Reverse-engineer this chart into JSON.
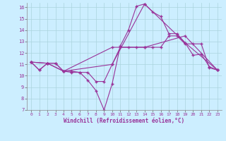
{
  "xlabel": "Windchill (Refroidissement éolien,°C)",
  "bg_color": "#cceeff",
  "line_color": "#993399",
  "xlim": [
    -0.5,
    23.5
  ],
  "ylim": [
    7,
    16.4
  ],
  "xticks": [
    0,
    1,
    2,
    3,
    4,
    5,
    6,
    7,
    8,
    9,
    10,
    11,
    12,
    13,
    14,
    15,
    16,
    17,
    18,
    19,
    20,
    21,
    22,
    23
  ],
  "yticks": [
    7,
    8,
    9,
    10,
    11,
    12,
    13,
    14,
    15,
    16
  ],
  "grid_color": "#aad4dd",
  "lines": [
    {
      "x": [
        0,
        1,
        2,
        3,
        4,
        5,
        6,
        7,
        8,
        9,
        10,
        11,
        12,
        13,
        14,
        15,
        16,
        17,
        18,
        19,
        20,
        21,
        22,
        23
      ],
      "y": [
        11.2,
        10.5,
        11.1,
        11.1,
        10.4,
        10.4,
        10.3,
        10.3,
        9.5,
        9.5,
        11.0,
        12.5,
        12.5,
        12.5,
        12.5,
        12.5,
        12.5,
        13.5,
        13.5,
        12.8,
        12.8,
        12.8,
        10.7,
        10.5
      ]
    },
    {
      "x": [
        0,
        1,
        2,
        3,
        4,
        5,
        6,
        7,
        8,
        9,
        10,
        11,
        12,
        13,
        14,
        15,
        16,
        17,
        18,
        19,
        20,
        21,
        22,
        23
      ],
      "y": [
        11.2,
        10.5,
        11.1,
        11.1,
        10.4,
        10.3,
        10.3,
        9.6,
        8.7,
        7.0,
        9.3,
        12.6,
        14.0,
        16.1,
        16.3,
        15.6,
        15.2,
        13.7,
        13.7,
        12.9,
        11.8,
        11.9,
        10.8,
        10.5
      ]
    },
    {
      "x": [
        0,
        2,
        4,
        10,
        14,
        19,
        23
      ],
      "y": [
        11.2,
        11.1,
        10.4,
        11.0,
        16.3,
        12.9,
        10.5
      ]
    },
    {
      "x": [
        0,
        2,
        4,
        10,
        14,
        19,
        23
      ],
      "y": [
        11.2,
        11.1,
        10.4,
        12.5,
        12.5,
        13.5,
        10.5
      ]
    }
  ]
}
